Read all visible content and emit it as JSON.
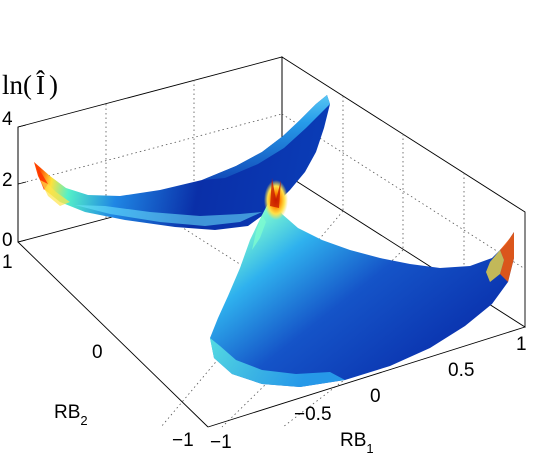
{
  "chart_data": {
    "type": "surface3d",
    "zlabel": {
      "prefix": "ln(",
      "symbol": "Î",
      "suffix": ")"
    },
    "xlabel": {
      "main": "RB",
      "sub": "1"
    },
    "ylabel": {
      "main": "RB",
      "sub": "2"
    },
    "xlim": [
      -1,
      1
    ],
    "ylim": [
      -1,
      1
    ],
    "zlim": [
      0,
      4
    ],
    "x_ticks": [
      "−1",
      "−0.5",
      "0",
      "0.5",
      "1"
    ],
    "y_ticks": [
      "−1",
      "0",
      "1"
    ],
    "z_ticks": [
      "0",
      "2",
      "4"
    ],
    "grid": true,
    "colormap": "jet",
    "surfaces": [
      {
        "name": "",
        "region": "RB1 < 0, RB2 > 0",
        "ln_I_min": 0.5,
        "ln_I_max": 2.5
      },
      {
        "name": "",
        "region": "RB1 > 0, RB2 < 0",
        "ln_I_min": 0.5,
        "ln_I_max": 3.0
      }
    ]
  }
}
